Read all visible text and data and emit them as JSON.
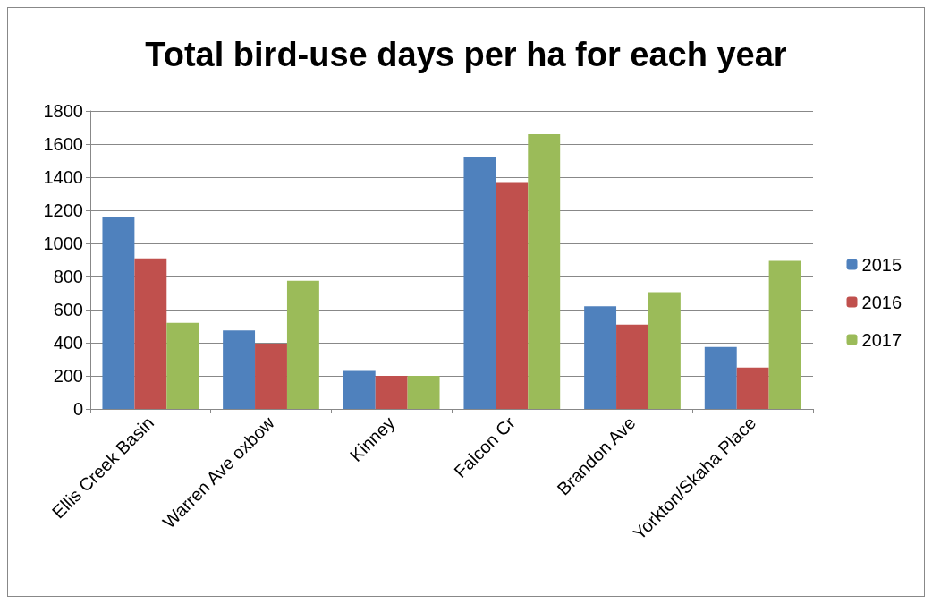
{
  "chart_data": {
    "type": "bar",
    "title": "Total bird-use days per ha for each year",
    "categories": [
      "Ellis Creek Basin",
      "Warren Ave oxbow",
      "Kinney",
      "Falcon Cr",
      "Brandon Ave",
      "Yorkton/Skaha Place"
    ],
    "series": [
      {
        "name": "2015",
        "color": "#4f81bd",
        "values": [
          1160,
          475,
          230,
          1520,
          620,
          375
        ]
      },
      {
        "name": "2016",
        "color": "#c0504d",
        "values": [
          910,
          395,
          200,
          1370,
          510,
          250
        ]
      },
      {
        "name": "2017",
        "color": "#9bbb59",
        "values": [
          520,
          775,
          200,
          1660,
          705,
          895
        ]
      }
    ],
    "ylim": [
      0,
      1800
    ],
    "yticks": [
      0,
      200,
      400,
      600,
      800,
      1000,
      1200,
      1400,
      1600,
      1800
    ],
    "grid": "y",
    "legend": "right"
  }
}
